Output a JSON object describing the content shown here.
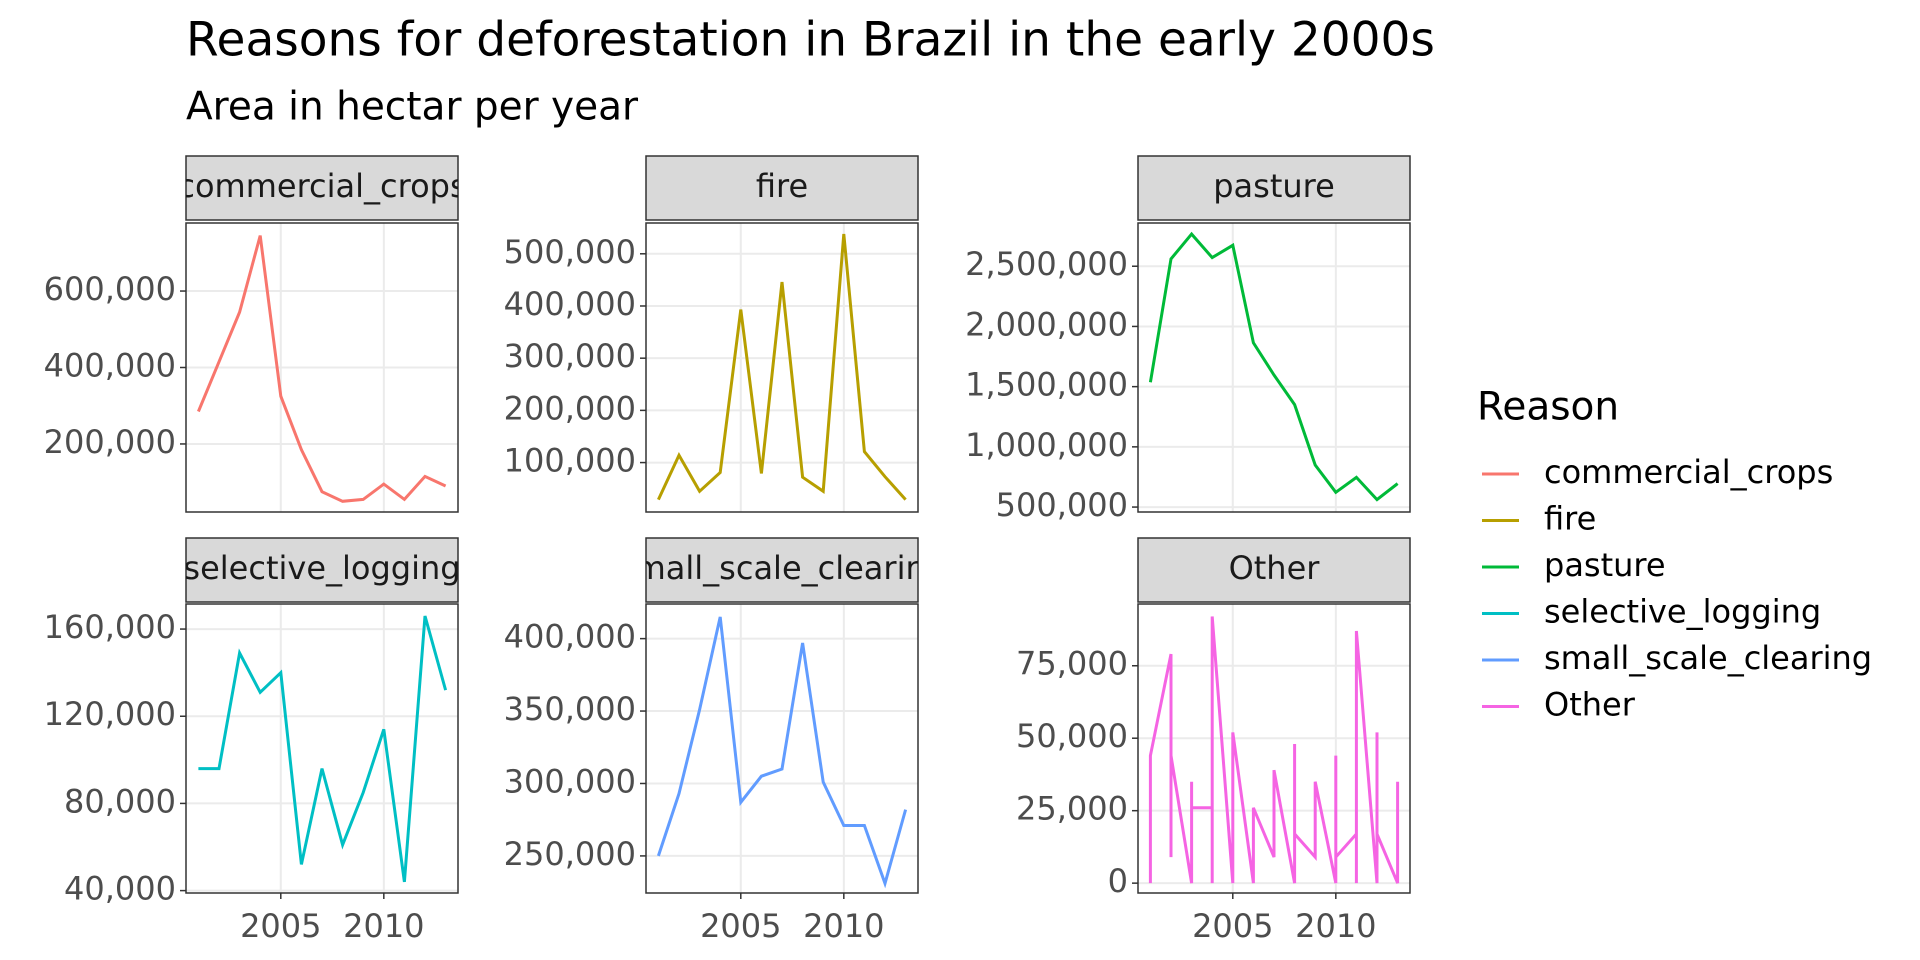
{
  "chart_data": {
    "type": "line",
    "title": "Reasons for deforestation in Brazil in the early 2000s",
    "subtitle": "Area in hectar per year",
    "legend_title": "Reason",
    "grid": true,
    "xlim": [
      2000.4,
      2013.6
    ],
    "xticks": [
      2005,
      2010
    ],
    "series": [
      {
        "name": "commercial_crops",
        "color": "#f8766d",
        "x": [
          2001,
          2002,
          2003,
          2004,
          2005,
          2006,
          2007,
          2008,
          2009,
          2010,
          2011,
          2012,
          2013
        ],
        "values": [
          285000,
          415000,
          545000,
          745000,
          325000,
          185000,
          75000,
          50000,
          55000,
          95000,
          55000,
          115000,
          90000
        ],
        "ylim": [
          22000,
          778000
        ],
        "yticks": [
          {
            "value": 200000,
            "label": "200,000"
          },
          {
            "value": 400000,
            "label": "400,000"
          },
          {
            "value": 600000,
            "label": "600,000"
          }
        ]
      },
      {
        "name": "fire",
        "color": "#b79f00",
        "x": [
          2001,
          2002,
          2003,
          2004,
          2005,
          2006,
          2007,
          2008,
          2009,
          2010,
          2011,
          2012,
          2013
        ],
        "values": [
          29000,
          114000,
          45000,
          81000,
          393000,
          79000,
          446000,
          72000,
          45000,
          538000,
          121000,
          73000,
          29000
        ],
        "ylim": [
          5300,
          559000
        ],
        "yticks": [
          {
            "value": 100000,
            "label": "100,000"
          },
          {
            "value": 200000,
            "label": "200,000"
          },
          {
            "value": 300000,
            "label": "300,000"
          },
          {
            "value": 400000,
            "label": "400,000"
          },
          {
            "value": 500000,
            "label": "500,000"
          }
        ]
      },
      {
        "name": "pasture",
        "color": "#00ba38",
        "x": [
          2001,
          2002,
          2003,
          2004,
          2005,
          2006,
          2007,
          2008,
          2009,
          2010,
          2011,
          2012,
          2013
        ],
        "values": [
          1536000,
          2561000,
          2767000,
          2572000,
          2674000,
          1864000,
          1597000,
          1351000,
          849000,
          623000,
          746000,
          562000,
          695000
        ],
        "ylim": [
          459000,
          2859000
        ],
        "yticks": [
          {
            "value": 500000,
            "label": "500,000"
          },
          {
            "value": 1000000,
            "label": "1,000,000"
          },
          {
            "value": 1500000,
            "label": "1,500,000"
          },
          {
            "value": 2000000,
            "label": "2,000,000"
          },
          {
            "value": 2500000,
            "label": "2,500,000"
          }
        ]
      },
      {
        "name": "selective_logging",
        "color": "#00bfc4",
        "x": [
          2001,
          2002,
          2003,
          2004,
          2005,
          2006,
          2007,
          2008,
          2009,
          2010,
          2011,
          2012,
          2013
        ],
        "values": [
          96000,
          96000,
          149000,
          131000,
          140000,
          52000,
          96000,
          61000,
          85000,
          114000,
          44000,
          166000,
          132000
        ],
        "ylim": [
          38900,
          171500
        ],
        "yticks": [
          {
            "value": 40000,
            "label": "40,000"
          },
          {
            "value": 80000,
            "label": "80,000"
          },
          {
            "value": 120000,
            "label": "120,000"
          },
          {
            "value": 160000,
            "label": "160,000"
          }
        ]
      },
      {
        "name": "small_scale_clearing",
        "color": "#619cff",
        "x": [
          2001,
          2002,
          2003,
          2004,
          2005,
          2006,
          2007,
          2008,
          2009,
          2010,
          2011,
          2012,
          2013
        ],
        "values": [
          250000,
          293000,
          351000,
          415000,
          287000,
          305000,
          310000,
          397000,
          301000,
          271000,
          271000,
          231000,
          282000
        ],
        "ylim": [
          224400,
          423900
        ],
        "yticks": [
          {
            "value": 250000,
            "label": "250,000"
          },
          {
            "value": 300000,
            "label": "300,000"
          },
          {
            "value": 350000,
            "label": "350,000"
          },
          {
            "value": 400000,
            "label": "400,000"
          }
        ]
      },
      {
        "name": "Other",
        "color": "#f564e3",
        "x": [
          2001,
          2001,
          2002,
          2002,
          2002,
          2003,
          2003,
          2003,
          2004,
          2004,
          2004,
          2005,
          2005,
          2006,
          2006,
          2007,
          2007,
          2008,
          2008,
          2008,
          2009,
          2009,
          2010,
          2010,
          2010,
          2011,
          2011,
          2011,
          2012,
          2012,
          2012,
          2013,
          2013
        ],
        "values": [
          0,
          44000,
          79000,
          9000,
          44000,
          0,
          35000,
          26000,
          26000,
          0,
          92000,
          0,
          52000,
          0,
          26000,
          9000,
          39000,
          0,
          48000,
          17000,
          9000,
          35000,
          0,
          44000,
          9000,
          17000,
          0,
          87000,
          0,
          52000,
          17000,
          0,
          35000
        ],
        "ylim": [
          -3400,
          96300
        ],
        "yticks": [
          0,
          {
            "value": 25000,
            "label": "25,000"
          },
          {
            "value": 50000,
            "label": "50,000"
          },
          {
            "value": 75000,
            "label": "75,000"
          }
        ]
      }
    ]
  }
}
